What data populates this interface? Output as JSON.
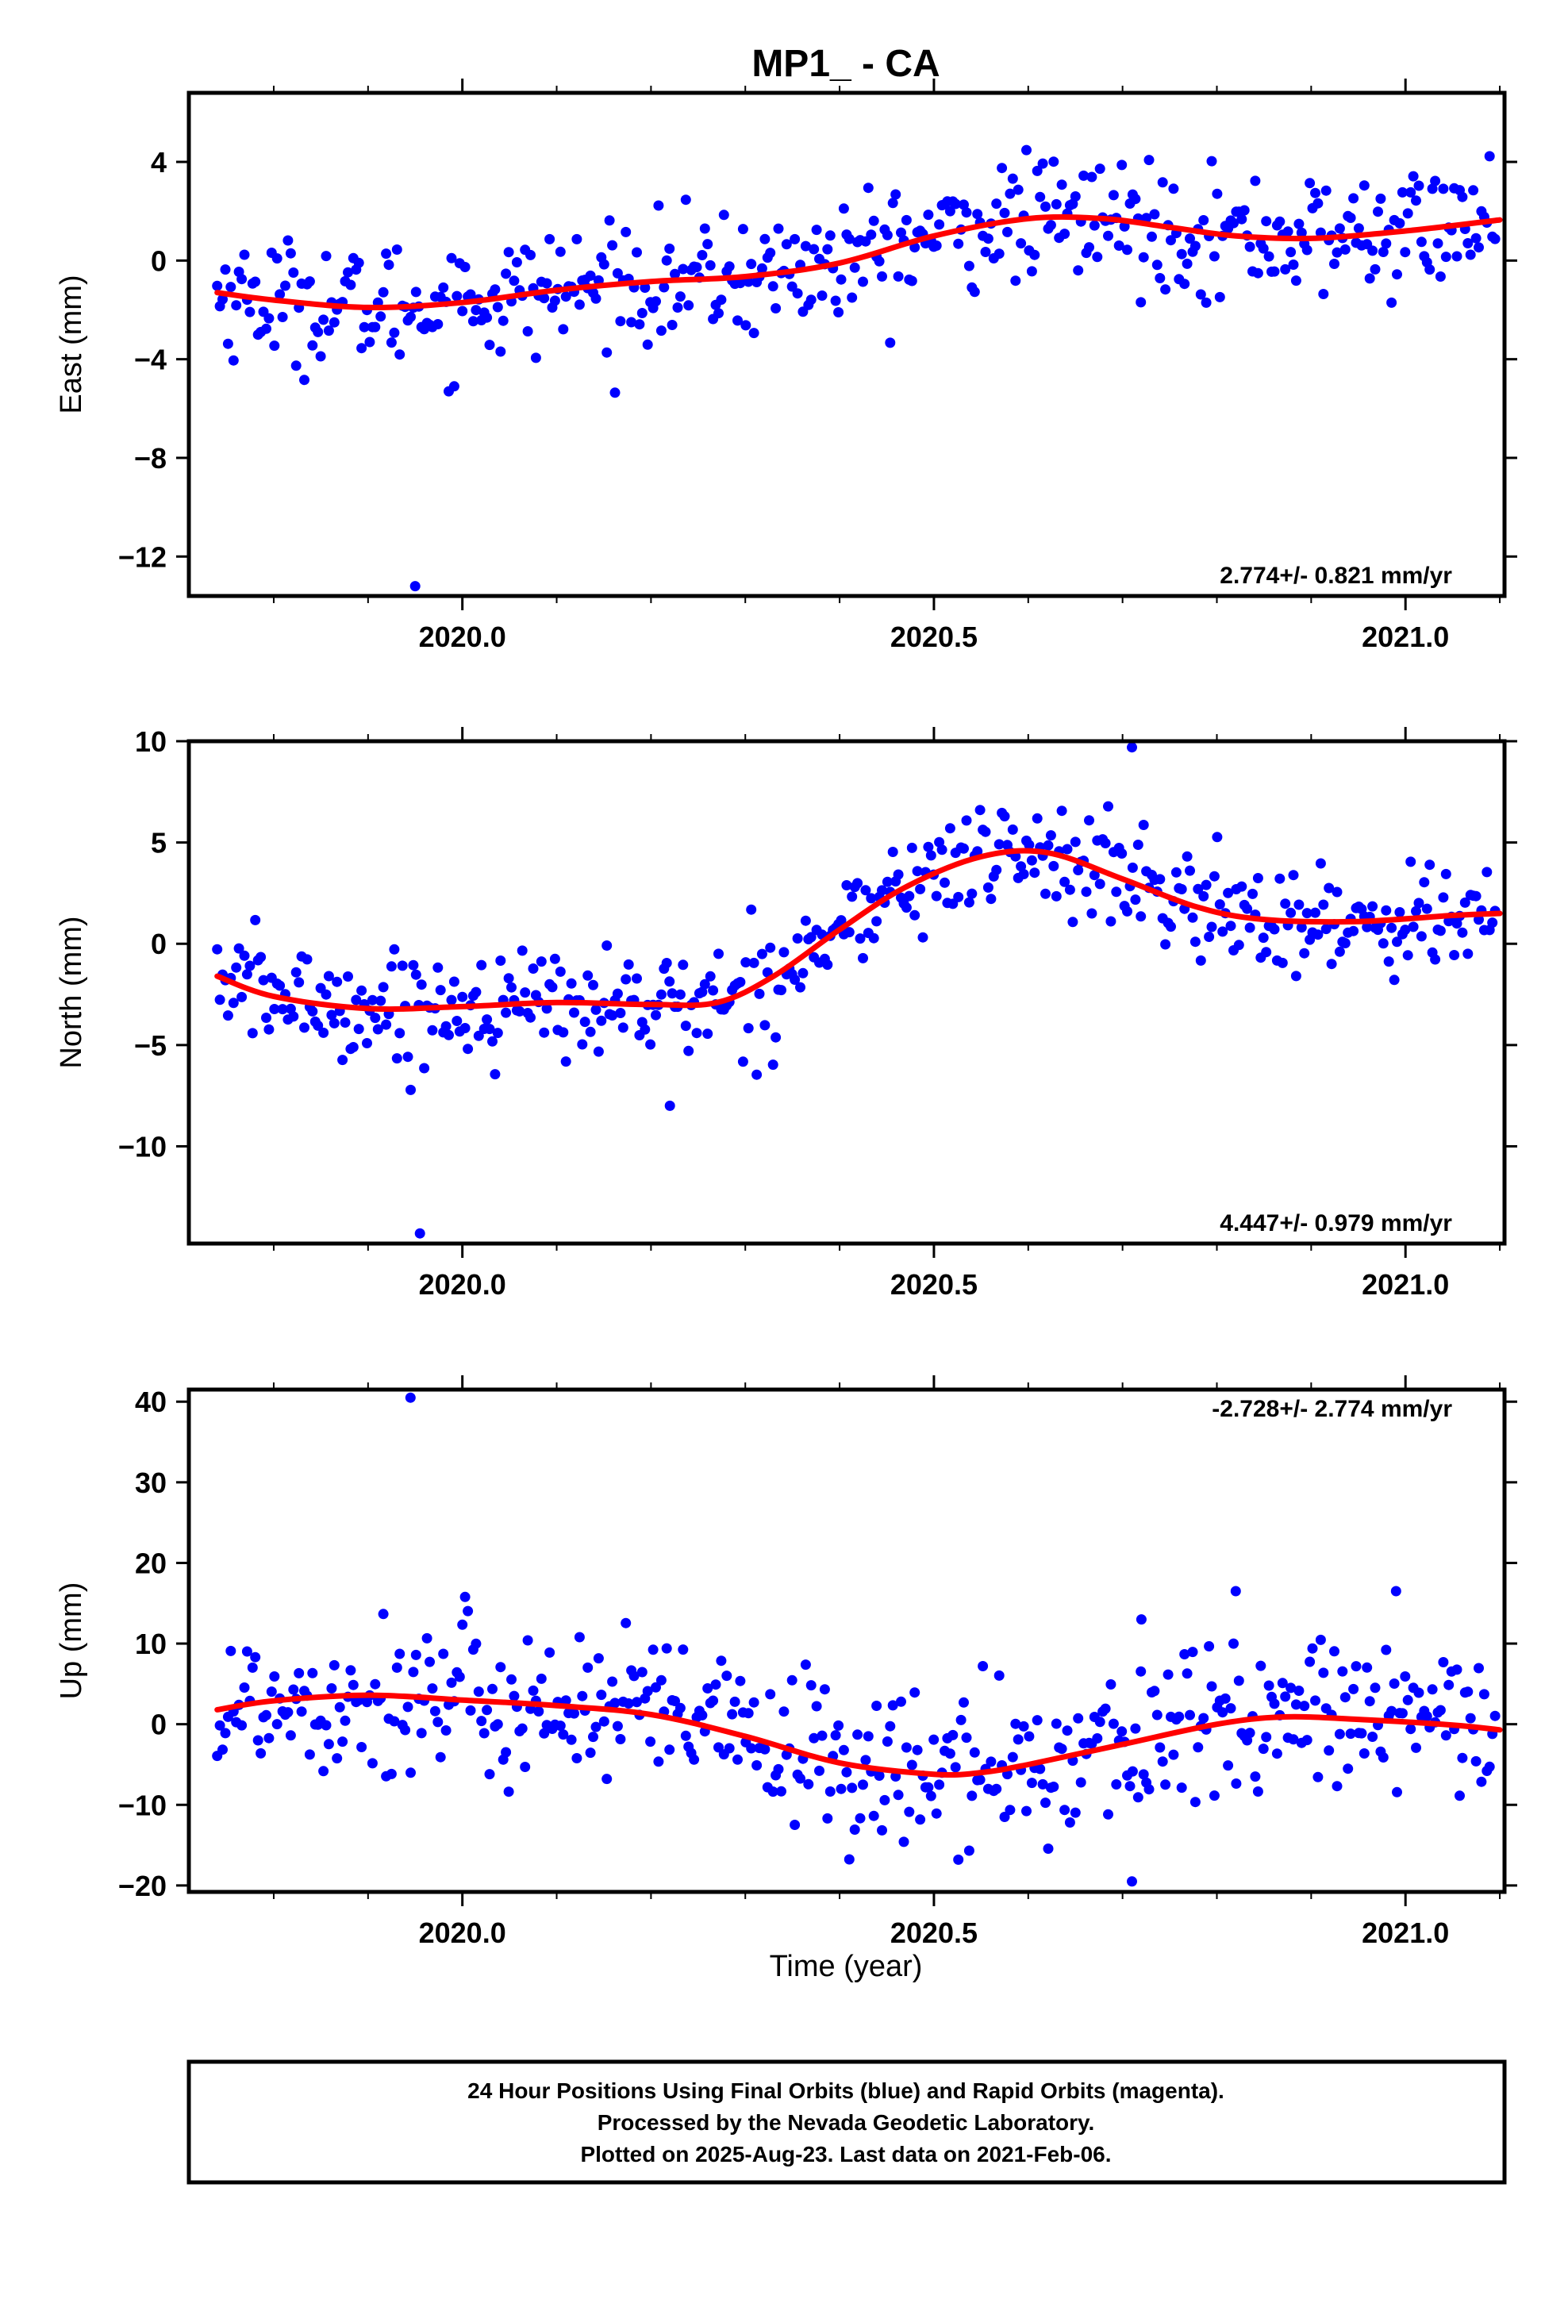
{
  "title": "MP1_ - CA",
  "x_axis_label": "Time (year)",
  "footer": {
    "line1": "24 Hour Positions Using Final Orbits (blue) and Rapid Orbits (magenta).",
    "line2": "Processed by the Nevada Geodetic Laboratory.",
    "line3": "Plotted on 2025-Aug-23. Last data on 2021-Feb-06."
  },
  "colors": {
    "points": "#0000ff",
    "fit": "#ff0000",
    "frame": "#000000"
  },
  "chart_data": [
    {
      "type": "scatter",
      "component": "east",
      "ylabel": "East (mm)",
      "rate_text": "2.774+/- 0.821 mm/yr",
      "rate_position": "bottom-right",
      "xlim": [
        2019.71,
        2021.105
      ],
      "ylim": [
        -13.6,
        6.8
      ],
      "x_ticks": [
        2020.0,
        2020.5,
        2021.0
      ],
      "x_tick_labels": [
        "2020.0",
        "2020.5",
        "2021.0"
      ],
      "y_ticks": [
        4,
        0,
        -4,
        -8,
        -12
      ],
      "y_tick_labels": [
        "4",
        "0",
        "−4",
        "−8",
        "−12"
      ],
      "fit": {
        "x": [
          2019.74,
          2019.8,
          2019.9,
          2020.0,
          2020.1,
          2020.2,
          2020.3,
          2020.4,
          2020.5,
          2020.6,
          2020.68,
          2020.75,
          2020.82,
          2020.9,
          2021.0,
          2021.1
        ],
        "y": [
          -1.3,
          -1.6,
          -1.9,
          -1.7,
          -1.2,
          -0.85,
          -0.65,
          -0.1,
          1.0,
          1.7,
          1.7,
          1.35,
          1.0,
          0.9,
          1.2,
          1.65
        ]
      },
      "outliers": {
        "x": [
          2019.95
        ],
        "y": [
          -13.2
        ]
      }
    },
    {
      "type": "scatter",
      "component": "north",
      "ylabel": "North (mm)",
      "rate_text": "4.447+/- 0.979 mm/yr",
      "rate_position": "bottom-right",
      "xlim": [
        2019.71,
        2021.105
      ],
      "ylim": [
        -14.8,
        10.0
      ],
      "x_ticks": [
        2020.0,
        2020.5,
        2021.0
      ],
      "x_tick_labels": [
        "2020.0",
        "2020.5",
        "2021.0"
      ],
      "y_ticks": [
        10,
        5,
        0,
        -5,
        -10
      ],
      "y_tick_labels": [
        "10",
        "5",
        "0",
        "−5",
        "−10"
      ],
      "fit": {
        "x": [
          2019.74,
          2019.8,
          2019.9,
          2020.0,
          2020.1,
          2020.2,
          2020.27,
          2020.33,
          2020.4,
          2020.47,
          2020.55,
          2020.62,
          2020.7,
          2020.78,
          2020.85,
          2020.95,
          2021.05,
          2021.1
        ],
        "y": [
          -1.6,
          -2.6,
          -3.2,
          -3.1,
          -2.9,
          -3.0,
          -2.9,
          -1.6,
          0.7,
          2.8,
          4.3,
          4.5,
          3.2,
          1.8,
          1.2,
          1.1,
          1.4,
          1.5
        ]
      },
      "outliers": {
        "x": [
          2019.955,
          2020.22,
          2020.71
        ],
        "y": [
          -14.3,
          -8.0,
          9.7
        ]
      }
    },
    {
      "type": "scatter",
      "component": "up",
      "ylabel": "Up (mm)",
      "rate_text": "-2.728+/- 2.774 mm/yr",
      "rate_position": "top-right",
      "xlim": [
        2019.71,
        2021.105
      ],
      "ylim": [
        -20.8,
        41.5
      ],
      "x_ticks": [
        2020.0,
        2020.5,
        2021.0
      ],
      "x_tick_labels": [
        "2020.0",
        "2020.5",
        "2021.0"
      ],
      "y_ticks": [
        40,
        30,
        20,
        10,
        0,
        -10,
        -20
      ],
      "y_tick_labels": [
        "40",
        "30",
        "20",
        "10",
        "0",
        "−10",
        "−20"
      ],
      "fit": {
        "x": [
          2019.74,
          2019.8,
          2019.9,
          2020.0,
          2020.1,
          2020.2,
          2020.3,
          2020.4,
          2020.5,
          2020.55,
          2020.6,
          2020.7,
          2020.8,
          2020.87,
          2020.95,
          2021.05,
          2021.1
        ],
        "y": [
          1.8,
          2.9,
          3.6,
          3.0,
          2.3,
          1.2,
          -1.5,
          -4.8,
          -6.2,
          -6.0,
          -5.0,
          -2.5,
          0.0,
          0.9,
          0.6,
          -0.1,
          -0.7
        ]
      },
      "outliers": {
        "x": [
          2019.945,
          2020.71,
          2020.72,
          2020.82,
          2020.99
        ],
        "y": [
          40.5,
          -19.5,
          13.0,
          16.5,
          16.5
        ]
      }
    }
  ]
}
